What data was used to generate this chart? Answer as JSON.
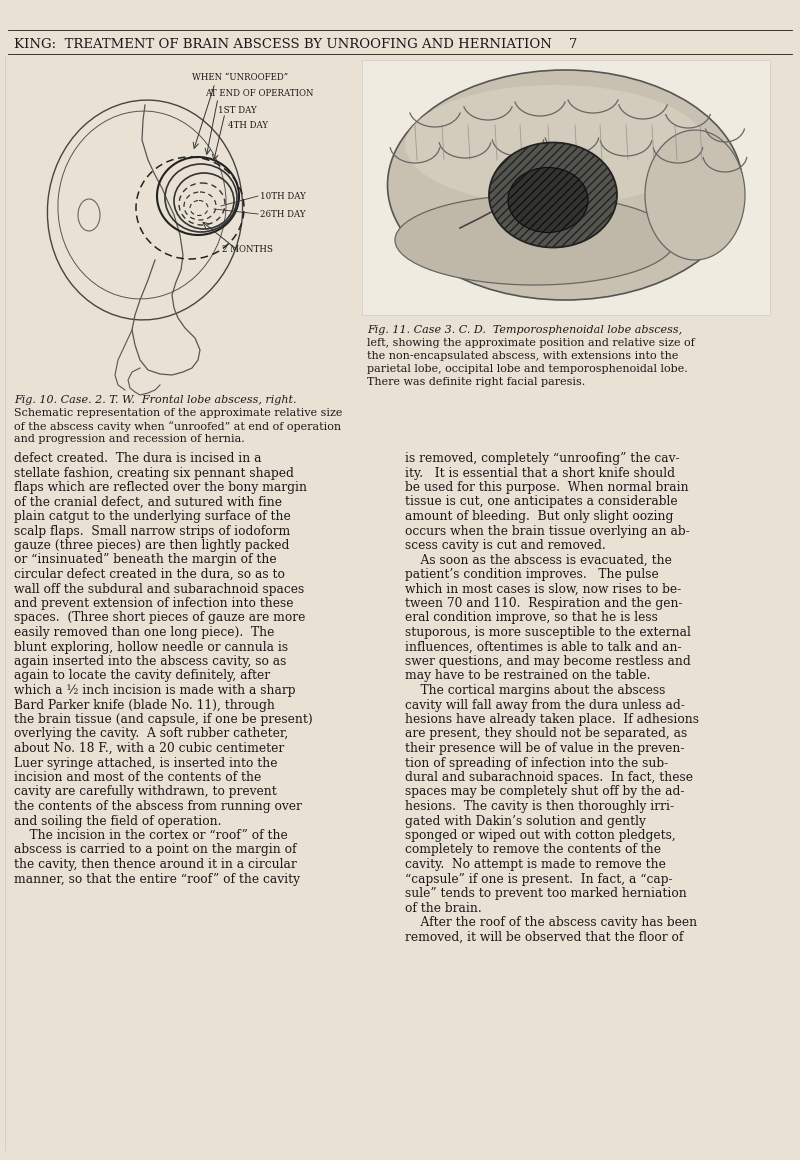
{
  "page_bg": "#e9e2d4",
  "text_color": "#1a1a1a",
  "header_text": "KING:  TREATMENT OF BRAIN ABSCESS BY UNROOFING AND HERNIATION    7",
  "fig10_caption_line1": "Fig. 10. Case. 2. T. W.  Frontal lobe abscess, right.",
  "fig10_caption_line2": "Schematic representation of the approximate relative size",
  "fig10_caption_line3": "of the abscess cavity when “unroofed” at end of operation",
  "fig10_caption_line4": "and progression and recession of hernia.",
  "fig11_caption_line1": "Fig. 11. Case 3. C. D.  Temporosphenoidal lobe abscess,",
  "fig11_caption_line2": "left, showing the approximate position and relative size of",
  "fig11_caption_line3": "the non-encapsulated abscess, with extensions into the",
  "fig11_caption_line4": "parietal lobe, occipital lobe and temporosphenoidal lobe.",
  "fig11_caption_line5": "There was definite right facial paresis.",
  "left_col_lines": [
    "defect created.  The dura is incised in a",
    "stellate fashion, creating six pennant shaped",
    "flaps which are reflected over the bony margin",
    "of the cranial defect, and sutured with fine",
    "plain catgut to the underlying surface of the",
    "scalp flaps.  Small narrow strips of iodoform",
    "gauze (three pieces) are then lightly packed",
    "or “insinuated” beneath the margin of the",
    "circular defect created in the dura, so as to",
    "wall off the subdural and subarachnoid spaces",
    "and prevent extension of infection into these",
    "spaces.  (Three short pieces of gauze are more",
    "easily removed than one long piece).  The",
    "blunt exploring, hollow needle or cannula is",
    "again inserted into the abscess cavity, so as",
    "again to locate the cavity definitely, after",
    "which a ½ inch incision is made with a sharp",
    "Bard Parker knife (blade No. 11), through",
    "the brain tissue (and capsule, if one be present)",
    "overlying the cavity.  A soft rubber catheter,",
    "about No. 18 F., with a 20 cubic centimeter",
    "Luer syringe attached, is inserted into the",
    "incision and most of the contents of the",
    "cavity are carefully withdrawn, to prevent",
    "the contents of the abscess from running over",
    "and soiling the field of operation.",
    "    The incision in the cortex or “roof” of the",
    "abscess is carried to a point on the margin of",
    "the cavity, then thence around it in a circular",
    "manner, so that the entire “roof” of the cavity"
  ],
  "right_col_lines": [
    "is removed, completely “unroofing” the cav-",
    "ity.   It is essential that a short knife should",
    "be used for this purpose.  When normal brain",
    "tissue is cut, one anticipates a considerable",
    "amount of bleeding.  But only slight oozing",
    "occurs when the brain tissue overlying an ab-",
    "scess cavity is cut and removed.",
    "    As soon as the abscess is evacuated, the",
    "patient’s condition improves.   The pulse",
    "which in most cases is slow, now rises to be-",
    "tween 70 and 110.  Respiration and the gen-",
    "eral condition improve, so that he is less",
    "stuporous, is more susceptible to the external",
    "influences, oftentimes is able to talk and an-",
    "swer questions, and may become restless and",
    "may have to be restrained on the table.",
    "    The cortical margins about the abscess",
    "cavity will fall away from the dura unless ad-",
    "hesions have already taken place.  If adhesions",
    "are present, they should not be separated, as",
    "their presence will be of value in the preven-",
    "tion of spreading of infection into the sub-",
    "dural and subarachnoid spaces.  In fact, these",
    "spaces may be completely shut off by the ad-",
    "hesions.  The cavity is then thoroughly irri-",
    "gated with Dakin’s solution and gently",
    "sponged or wiped out with cotton pledgets,",
    "completely to remove the contents of the",
    "cavity.  No attempt is made to remove the",
    "“capsule” if one is present.  In fact, a “cap-",
    "sule” tends to prevent too marked herniation",
    "of the brain.",
    "    After the roof of the abscess cavity has been",
    "removed, it will be observed that the floor of"
  ],
  "label_when_unroofed": "WHEN “UNROOFED”",
  "label_at_end": "AT END OF OPERATION",
  "label_1st": "1ST DAY",
  "label_4th": "4TH DAY",
  "label_10th": "10TH DAY",
  "label_26th": "26TH DAY",
  "label_2months": "2 MONTHS"
}
